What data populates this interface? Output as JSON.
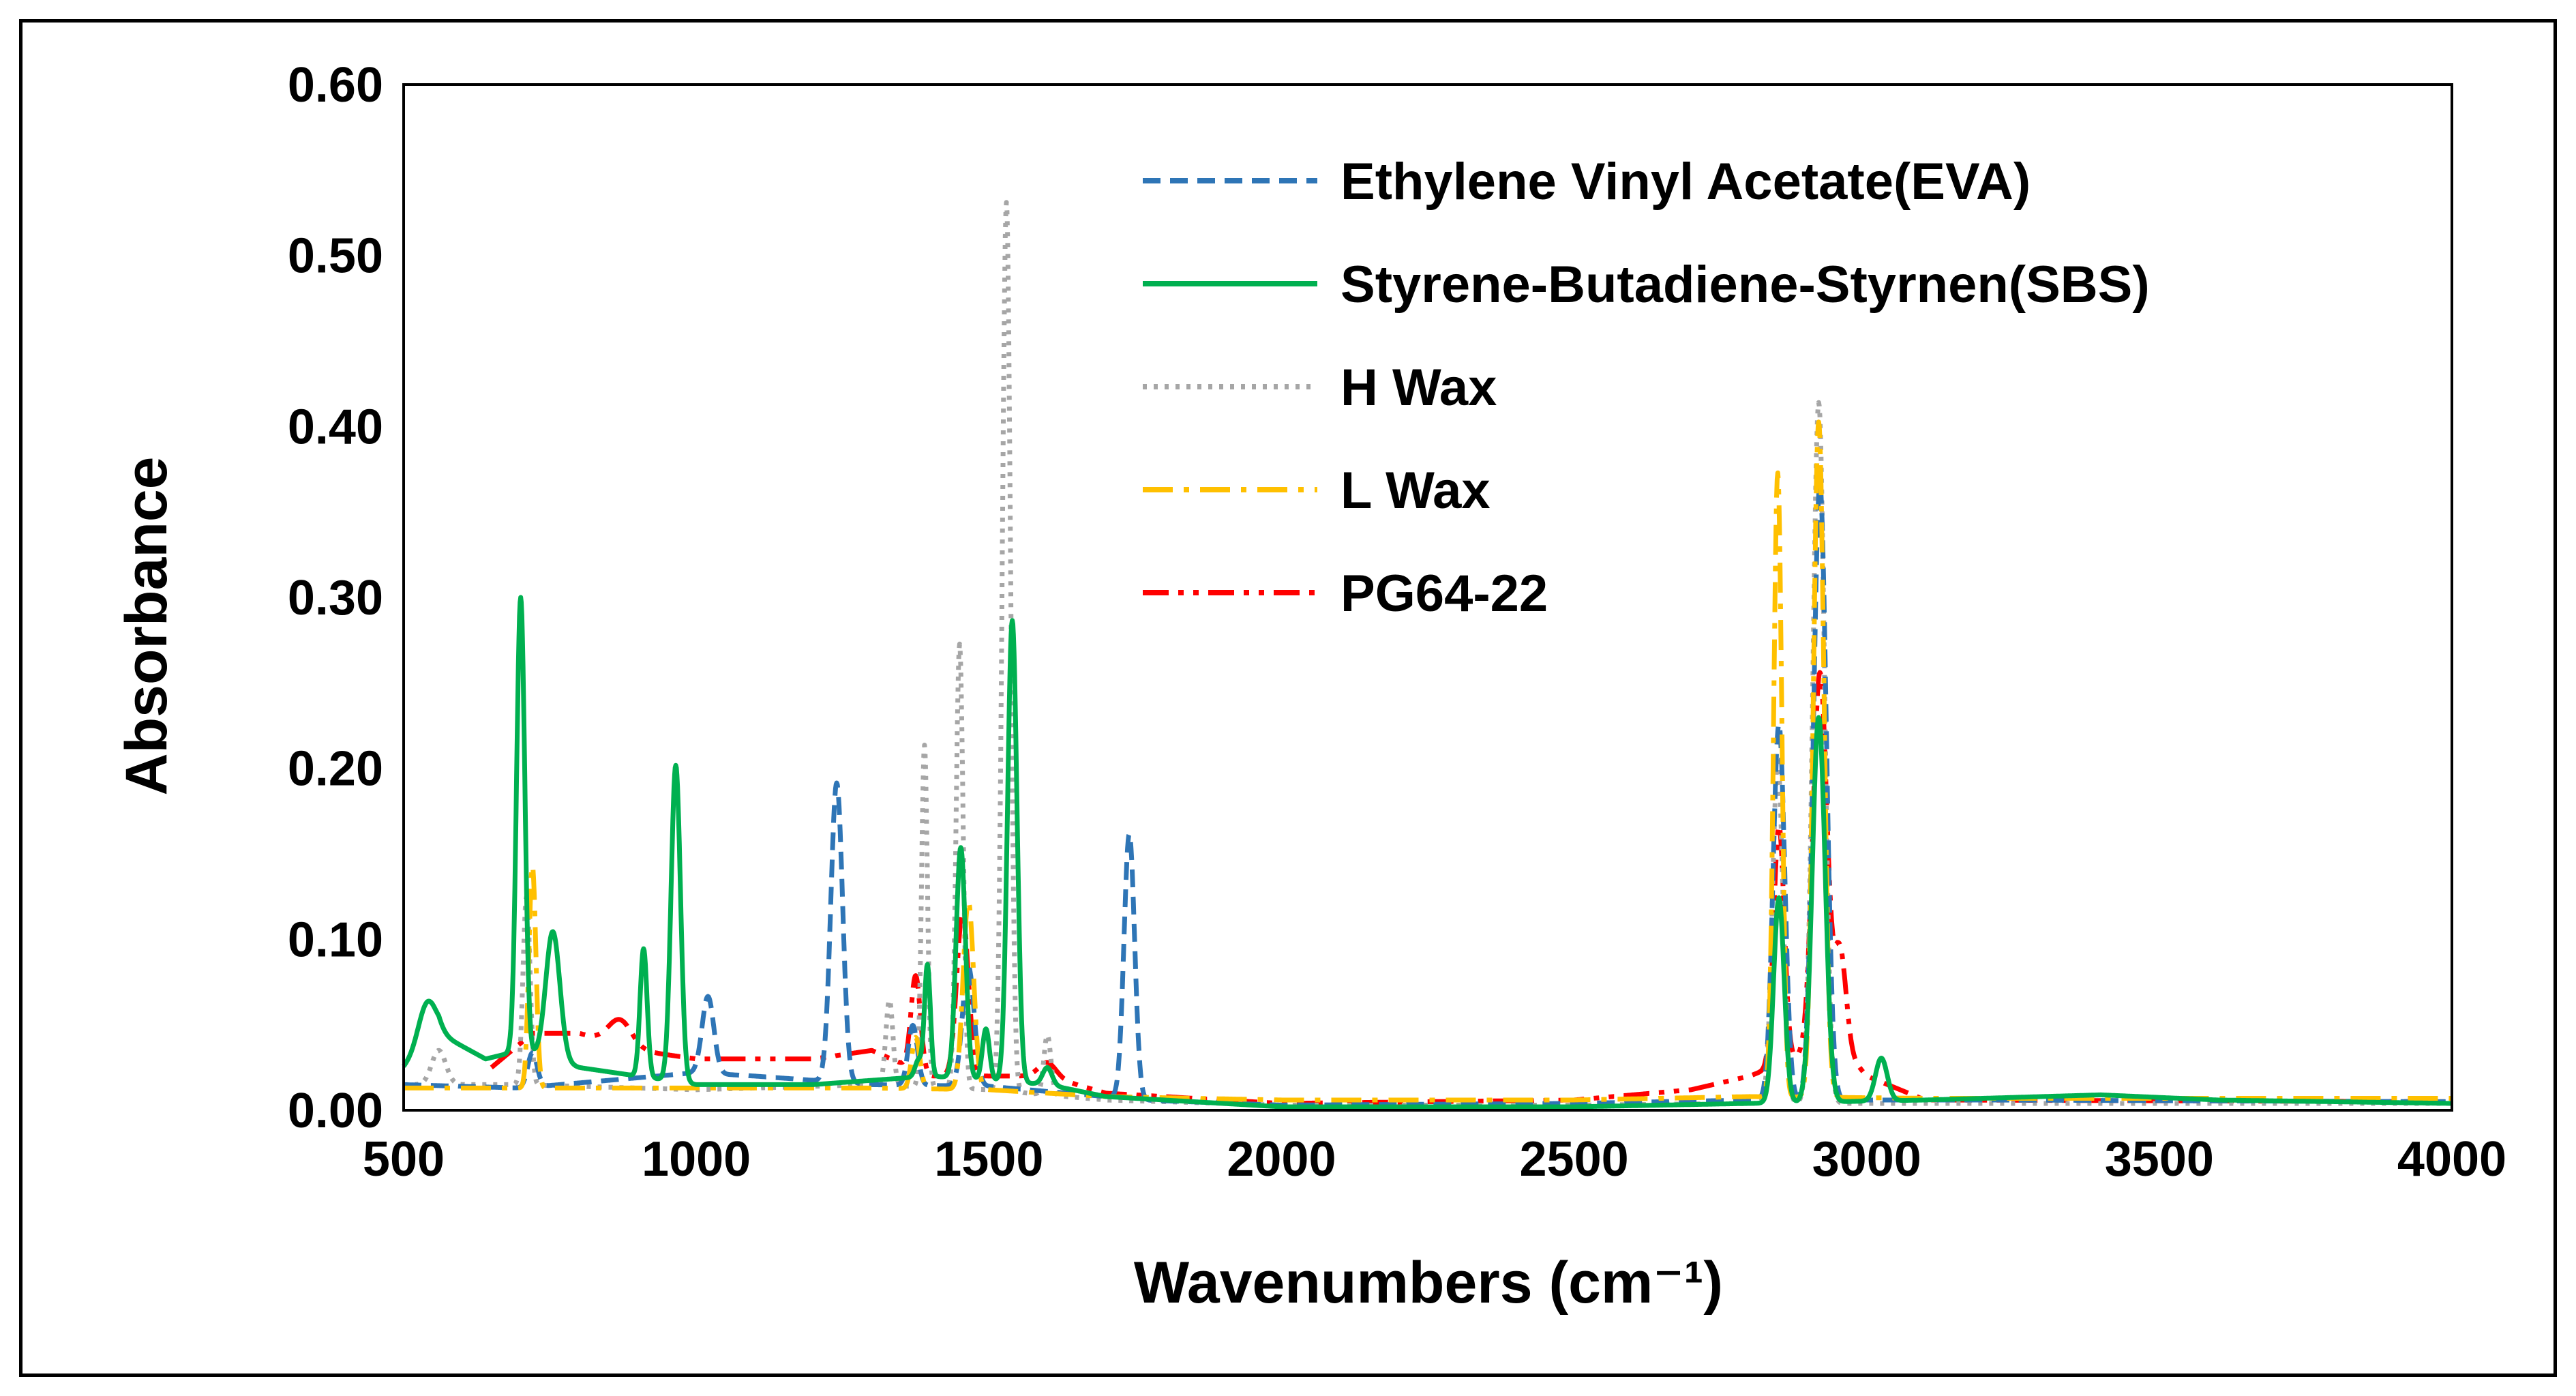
{
  "chart_data": {
    "type": "line",
    "title": "",
    "xlabel": "Wavenumbers (cm⁻¹)",
    "ylabel": "Absorbance",
    "xlim": [
      500,
      4000
    ],
    "ylim": [
      0,
      0.6
    ],
    "xticks": [
      "500",
      "1000",
      "1500",
      "2000",
      "2500",
      "3000",
      "3500",
      "4000"
    ],
    "yticks": [
      "0.00",
      "0.10",
      "0.20",
      "0.30",
      "0.40",
      "0.50",
      "0.60"
    ],
    "grid": false,
    "legend_position": "top-right",
    "series": [
      {
        "name": "Ethylene Vinyl Acetate(EVA)",
        "color": "#2E75B6",
        "dash": "dashed",
        "base": [
          [
            500,
            0.015
          ],
          [
            700,
            0.013
          ],
          [
            1000,
            0.022
          ],
          [
            1100,
            0.02
          ],
          [
            1300,
            0.015
          ],
          [
            1500,
            0.014
          ],
          [
            1700,
            0.008
          ],
          [
            1760,
            0.006
          ],
          [
            2000,
            0.003
          ],
          [
            2500,
            0.004
          ],
          [
            2800,
            0.006
          ],
          [
            3050,
            0.006
          ],
          [
            3200,
            0.006
          ],
          [
            4000,
            0.005
          ]
        ],
        "peaks": [
          [
            720,
            0.02,
            8
          ],
          [
            1020,
            0.045,
            10
          ],
          [
            1240,
            0.175,
            10
          ],
          [
            1370,
            0.035,
            8
          ],
          [
            1465,
            0.07,
            10
          ],
          [
            1740,
            0.155,
            9
          ],
          [
            2850,
            0.22,
            10
          ],
          [
            2920,
            0.36,
            11
          ]
        ]
      },
      {
        "name": "Styrene-Butadiene-Styrnen(SBS)",
        "color": "#00B050",
        "dash": "solid",
        "base": [
          [
            500,
            0.025
          ],
          [
            560,
            0.045
          ],
          [
            640,
            0.03
          ],
          [
            700,
            0.035
          ],
          [
            800,
            0.025
          ],
          [
            1000,
            0.015
          ],
          [
            1200,
            0.015
          ],
          [
            1400,
            0.02
          ],
          [
            1600,
            0.015
          ],
          [
            1700,
            0.008
          ],
          [
            2000,
            0.002
          ],
          [
            2500,
            0.002
          ],
          [
            2800,
            0.004
          ],
          [
            3100,
            0.006
          ],
          [
            3400,
            0.009
          ],
          [
            3600,
            0.006
          ],
          [
            4000,
            0.004
          ]
        ],
        "peaks": [
          [
            540,
            0.025,
            15
          ],
          [
            700,
            0.265,
            7
          ],
          [
            755,
            0.075,
            12
          ],
          [
            910,
            0.075,
            6
          ],
          [
            965,
            0.185,
            8
          ],
          [
            1380,
            0.01,
            6
          ],
          [
            1395,
            0.065,
            5
          ],
          [
            1452,
            0.135,
            8
          ],
          [
            1495,
            0.03,
            6
          ],
          [
            1540,
            0.27,
            8
          ],
          [
            1600,
            0.01,
            8
          ],
          [
            2850,
            0.12,
            9
          ],
          [
            2918,
            0.225,
            11
          ],
          [
            3025,
            0.025,
            10
          ]
        ]
      },
      {
        "name": "H Wax",
        "color": "#A6A6A6",
        "dash": "dotted",
        "base": [
          [
            500,
            0.015
          ],
          [
            700,
            0.015
          ],
          [
            1000,
            0.012
          ],
          [
            1300,
            0.015
          ],
          [
            1500,
            0.012
          ],
          [
            1700,
            0.006
          ],
          [
            2000,
            0.003
          ],
          [
            2500,
            0.003
          ],
          [
            2800,
            0.004
          ],
          [
            3100,
            0.004
          ],
          [
            4000,
            0.004
          ]
        ],
        "peaks": [
          [
            560,
            0.02,
            12
          ],
          [
            710,
            0.11,
            6
          ],
          [
            1330,
            0.05,
            6
          ],
          [
            1390,
            0.2,
            5
          ],
          [
            1450,
            0.26,
            6
          ],
          [
            1530,
            0.52,
            7
          ],
          [
            1600,
            0.035,
            6
          ],
          [
            2848,
            0.2,
            9
          ],
          [
            2918,
            0.41,
            10
          ]
        ]
      },
      {
        "name": "L Wax",
        "color": "#FFC000",
        "dash": "dashdot",
        "base": [
          [
            500,
            0.013
          ],
          [
            700,
            0.013
          ],
          [
            1000,
            0.013
          ],
          [
            1300,
            0.013
          ],
          [
            1500,
            0.012
          ],
          [
            1700,
            0.008
          ],
          [
            2000,
            0.006
          ],
          [
            2500,
            0.006
          ],
          [
            2800,
            0.008
          ],
          [
            3100,
            0.007
          ],
          [
            4000,
            0.007
          ]
        ],
        "peaks": [
          [
            720,
            0.13,
            6
          ],
          [
            1375,
            0.03,
            7
          ],
          [
            1465,
            0.11,
            9
          ],
          [
            2848,
            0.365,
            7
          ],
          [
            2918,
            0.395,
            9
          ]
        ]
      },
      {
        "name": "PG64-22",
        "color": "#FF0000",
        "dash": "dashdotdot",
        "base": [
          [
            650,
            0.025
          ],
          [
            720,
            0.045
          ],
          [
            800,
            0.045
          ],
          [
            900,
            0.035
          ],
          [
            1000,
            0.03
          ],
          [
            1100,
            0.03
          ],
          [
            1200,
            0.03
          ],
          [
            1300,
            0.035
          ],
          [
            1400,
            0.02
          ],
          [
            1600,
            0.02
          ],
          [
            1700,
            0.01
          ],
          [
            2000,
            0.004
          ],
          [
            2500,
            0.006
          ],
          [
            2700,
            0.012
          ],
          [
            2800,
            0.02
          ],
          [
            2950,
            0.04
          ],
          [
            3000,
            0.02
          ],
          [
            3100,
            0.006
          ],
          [
            4000,
            0.005
          ]
        ],
        "peaks": [
          [
            870,
            0.015,
            20
          ],
          [
            1375,
            0.055,
            8
          ],
          [
            1455,
            0.095,
            10
          ],
          [
            1600,
            0.008,
            15
          ],
          [
            2850,
            0.14,
            9
          ],
          [
            2920,
            0.22,
            12
          ],
          [
            2955,
            0.055,
            10
          ]
        ]
      }
    ]
  }
}
